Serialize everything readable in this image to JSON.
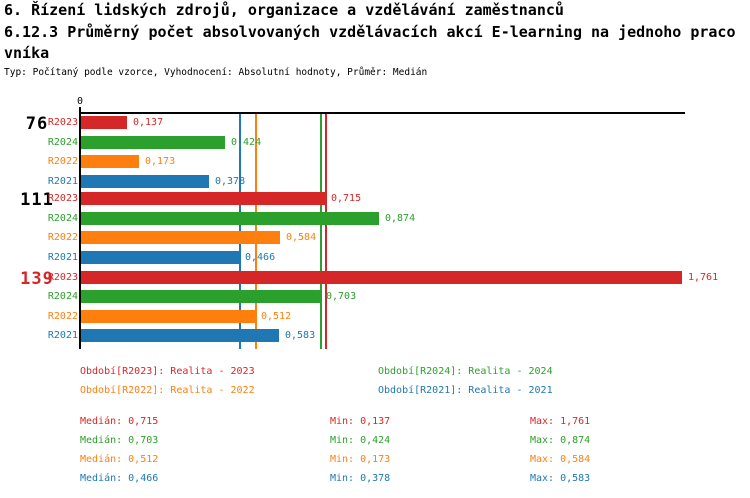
{
  "header": {
    "title_line1": "6. Řízení lidských zdrojů, organizace a vzdělávání zaměstnanců",
    "title_line2": "6.12.3 Průměrný počet absolvovaných vzdělávacích akcí E-learning na jednoho praco",
    "title_line3": "vníka",
    "subtitle": "Typ: Počítaný podle vzorce, Vyhodnocení: Absolutní hodnoty, Průměr: Medián"
  },
  "colors": {
    "R2023": "#d62728",
    "R2024": "#2ca02c",
    "R2022": "#ff7f0e",
    "R2021": "#1f77b4",
    "axis": "#000000",
    "group_label_default": "#000000",
    "group_label_alert": "#d62728"
  },
  "chart_data": {
    "type": "bar",
    "orientation": "horizontal",
    "x_axis": {
      "min": 0,
      "tick_labels": [
        "0"
      ],
      "approx_max_units": 1.77
    },
    "categories": [
      "76",
      "111",
      "139"
    ],
    "series_order": [
      "R2023",
      "R2024",
      "R2022",
      "R2021"
    ],
    "groups": [
      {
        "label": "76",
        "label_color": "#000000",
        "bars": [
          {
            "series": "R2023",
            "value": 0.137,
            "display": "0,137"
          },
          {
            "series": "R2024",
            "value": 0.424,
            "display": "0,424"
          },
          {
            "series": "R2022",
            "value": 0.173,
            "display": "0,173"
          },
          {
            "series": "R2021",
            "value": 0.378,
            "display": "0,378"
          }
        ]
      },
      {
        "label": "111",
        "label_color": "#000000",
        "bars": [
          {
            "series": "R2023",
            "value": 0.715,
            "display": "0,715"
          },
          {
            "series": "R2024",
            "value": 0.874,
            "display": "0,874"
          },
          {
            "series": "R2022",
            "value": 0.584,
            "display": "0,584"
          },
          {
            "series": "R2021",
            "value": 0.466,
            "display": "0,466"
          }
        ]
      },
      {
        "label": "139",
        "label_color": "#d62728",
        "bars": [
          {
            "series": "R2023",
            "value": 1.761,
            "display": "1,761"
          },
          {
            "series": "R2024",
            "value": 0.703,
            "display": "0,703"
          },
          {
            "series": "R2022",
            "value": 0.512,
            "display": "0,512"
          },
          {
            "series": "R2021",
            "value": 0.583,
            "display": "0,583"
          }
        ]
      }
    ],
    "median_lines": [
      {
        "series": "R2021",
        "value": 0.466
      },
      {
        "series": "R2022",
        "value": 0.512
      },
      {
        "series": "R2024",
        "value": 0.703
      },
      {
        "series": "R2023",
        "value": 0.715
      }
    ]
  },
  "legend": {
    "items": [
      {
        "series": "R2023",
        "text": "Období[R2023]: Realita - 2023"
      },
      {
        "series": "R2024",
        "text": "Období[R2024]: Realita - 2024"
      },
      {
        "series": "R2022",
        "text": "Období[R2022]: Realita - 2022"
      },
      {
        "series": "R2021",
        "text": "Období[R2021]: Realita - 2021"
      }
    ]
  },
  "stats": {
    "labels": {
      "median": "Medián:",
      "min": "Min:",
      "max": "Max:"
    },
    "rows": [
      {
        "series": "R2023",
        "median": "0,715",
        "min": "0,137",
        "max": "1,761"
      },
      {
        "series": "R2024",
        "median": "0,703",
        "min": "0,424",
        "max": "0,874"
      },
      {
        "series": "R2022",
        "median": "0,512",
        "min": "0,173",
        "max": "0,584"
      },
      {
        "series": "R2021",
        "median": "0,466",
        "min": "0,378",
        "max": "0,583"
      }
    ]
  }
}
